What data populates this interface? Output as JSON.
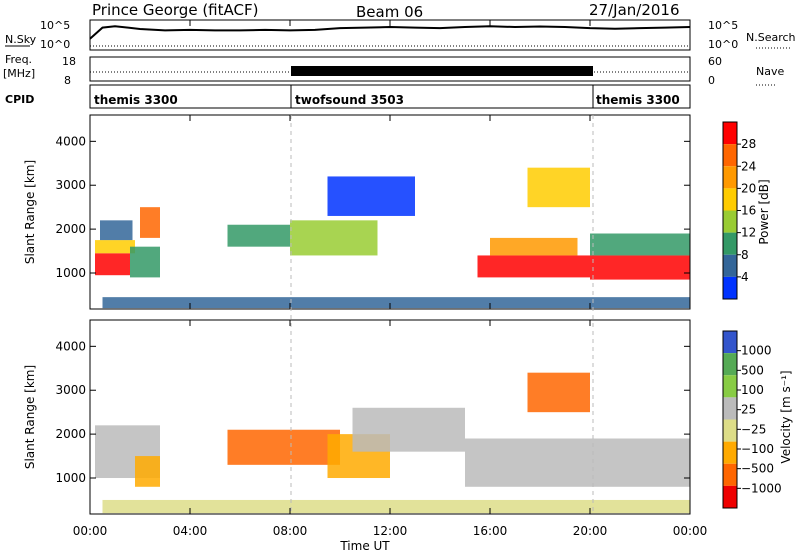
{
  "header": {
    "station": "Prince George (fitACF)",
    "beam": "Beam 06",
    "date": "27/Jan/2016"
  },
  "noise_panel": {
    "left_label": "N.Sky",
    "left_top_tick": "10^5",
    "left_bottom_tick": "10^0",
    "right_top_tick": "10^5",
    "right_bottom_tick": "10^0",
    "right_label": "N.Search"
  },
  "freq_panel": {
    "left_label_1": "Freq.",
    "left_label_2": "[MHz]",
    "left_top_tick": "18",
    "left_bottom_tick": "8",
    "right_top_tick": "60",
    "right_bottom_tick": "0",
    "right_label": "Nave"
  },
  "cpid_panel": {
    "label": "CPID",
    "segments": [
      {
        "name": "themis 3300",
        "start_hour": 0,
        "end_hour": 8
      },
      {
        "name": "twofsound 3503",
        "start_hour": 8,
        "end_hour": 20
      },
      {
        "name": "themis 3300",
        "start_hour": 20,
        "end_hour": 24
      }
    ]
  },
  "power_panel": {
    "ylabel": "Slant Range [km]",
    "colorbar_label": "Power [dB]",
    "colorbar_ticks": [
      "28",
      "24",
      "20",
      "16",
      "12",
      "8",
      "4"
    ]
  },
  "velocity_panel": {
    "ylabel": "Slant Range [km]",
    "colorbar_label": "Velocity [m s⁻¹]",
    "colorbar_ticks": [
      "1000",
      "500",
      "100",
      "25",
      "−25",
      "−100",
      "−500",
      "−1000"
    ]
  },
  "x_axis": {
    "label": "Time UT",
    "ticks": [
      "00:00",
      "04:00",
      "08:00",
      "12:00",
      "16:00",
      "20:00",
      "00:00"
    ]
  },
  "chart_data": {
    "type": "heatmap",
    "x_range_hours": [
      0,
      24
    ],
    "y_ticks_km": [
      1000,
      2000,
      3000,
      4000
    ],
    "y_range_km": [
      180,
      4600
    ],
    "power_colors": [
      "#ff0000",
      "#ff6600",
      "#ff9900",
      "#ffcc00",
      "#99cc33",
      "#339966",
      "#336699",
      "#0033ff"
    ],
    "velocity_colors": [
      "#3355cc",
      "#55aa55",
      "#88cc44",
      "#bbbbbb",
      "#dddd88",
      "#ffaa00",
      "#ff6600",
      "#ee0000"
    ],
    "noise_series": [
      [
        0,
        0.4
      ],
      [
        0.5,
        0.8
      ],
      [
        1,
        0.85
      ],
      [
        2,
        0.75
      ],
      [
        3,
        0.7
      ],
      [
        4,
        0.72
      ],
      [
        5,
        0.7
      ],
      [
        6,
        0.7
      ],
      [
        7,
        0.72
      ],
      [
        8,
        0.7
      ],
      [
        9,
        0.72
      ],
      [
        10,
        0.78
      ],
      [
        11,
        0.8
      ],
      [
        12,
        0.82
      ],
      [
        13,
        0.8
      ],
      [
        14,
        0.78
      ],
      [
        15,
        0.82
      ],
      [
        16,
        0.85
      ],
      [
        17,
        0.82
      ],
      [
        18,
        0.84
      ],
      [
        19,
        0.82
      ],
      [
        20,
        0.78
      ],
      [
        21,
        0.76
      ],
      [
        22,
        0.78
      ],
      [
        23,
        0.8
      ],
      [
        24,
        0.82
      ]
    ],
    "power_regions": [
      {
        "x": [
          0.2,
          1.6
        ],
        "y": [
          950,
          1450
        ],
        "level": 0
      },
      {
        "x": [
          0.2,
          1.8
        ],
        "y": [
          1450,
          1750
        ],
        "level": 3
      },
      {
        "x": [
          0.4,
          1.7
        ],
        "y": [
          1750,
          2200
        ],
        "level": 6
      },
      {
        "x": [
          2.0,
          2.8
        ],
        "y": [
          1800,
          2500
        ],
        "level": 1
      },
      {
        "x": [
          1.6,
          2.8
        ],
        "y": [
          900,
          1600
        ],
        "level": 5
      },
      {
        "x": [
          5.5,
          8.0
        ],
        "y": [
          1600,
          2100
        ],
        "level": 5
      },
      {
        "x": [
          8.0,
          11.5
        ],
        "y": [
          1400,
          2200
        ],
        "level": 4
      },
      {
        "x": [
          9.5,
          13.0
        ],
        "y": [
          2300,
          3200
        ],
        "level": 7
      },
      {
        "x": [
          15.5,
          20.0
        ],
        "y": [
          900,
          1400
        ],
        "level": 0
      },
      {
        "x": [
          16.0,
          19.5
        ],
        "y": [
          1400,
          1800
        ],
        "level": 2
      },
      {
        "x": [
          20.0,
          24.0
        ],
        "y": [
          850,
          1400
        ],
        "level": 0
      },
      {
        "x": [
          20.0,
          24.0
        ],
        "y": [
          1400,
          1900
        ],
        "level": 5
      },
      {
        "x": [
          17.5,
          20.0
        ],
        "y": [
          2500,
          3400
        ],
        "level": 3
      },
      {
        "x": [
          0.5,
          24.0
        ],
        "y": [
          200,
          450
        ],
        "level": 6
      }
    ],
    "velocity_regions": [
      {
        "x": [
          0.2,
          2.8
        ],
        "y": [
          1000,
          2200
        ],
        "level": 3
      },
      {
        "x": [
          1.8,
          2.8
        ],
        "y": [
          800,
          1500
        ],
        "level": 5
      },
      {
        "x": [
          5.5,
          10.0
        ],
        "y": [
          1300,
          2100
        ],
        "level": 6
      },
      {
        "x": [
          9.5,
          12.0
        ],
        "y": [
          1000,
          2000
        ],
        "level": 5
      },
      {
        "x": [
          10.5,
          15.0
        ],
        "y": [
          1600,
          2600
        ],
        "level": 3
      },
      {
        "x": [
          15.0,
          24.0
        ],
        "y": [
          800,
          1900
        ],
        "level": 3
      },
      {
        "x": [
          17.5,
          20.0
        ],
        "y": [
          2500,
          3400
        ],
        "level": 6
      },
      {
        "x": [
          0.5,
          24.0
        ],
        "y": [
          200,
          500
        ],
        "level": 4
      }
    ]
  }
}
